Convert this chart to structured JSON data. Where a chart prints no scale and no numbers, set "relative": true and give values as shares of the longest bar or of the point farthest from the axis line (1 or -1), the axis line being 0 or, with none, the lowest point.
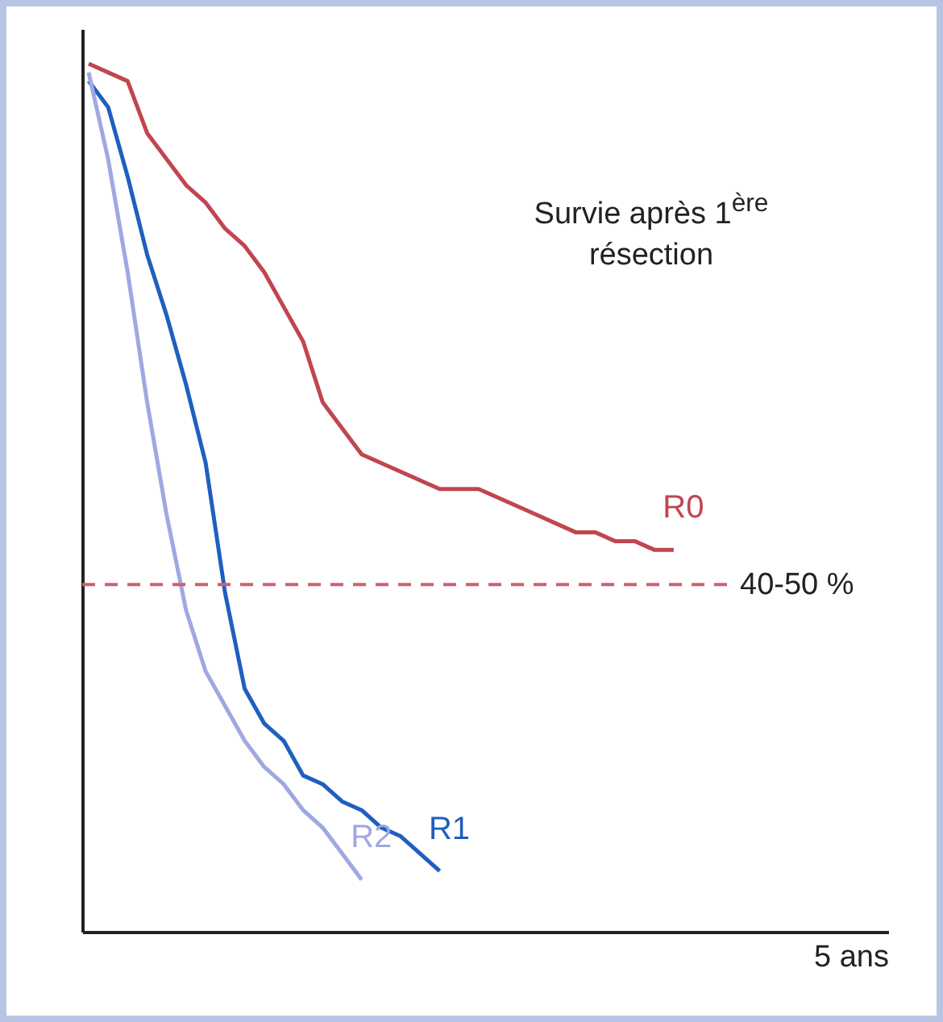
{
  "chart_data": {
    "type": "line",
    "relative": true,
    "xlabel": "5 ans",
    "categories": [
      null,
      null,
      null,
      null,
      null,
      null,
      null,
      null,
      null,
      null,
      null,
      null,
      null,
      null,
      null,
      null,
      null,
      null,
      null,
      null,
      null,
      null,
      null,
      null,
      null,
      null,
      null,
      null,
      null,
      null,
      null
    ],
    "series": [
      {
        "name": "R0",
        "color": "#c0464f",
        "values": [
          1.0,
          0.99,
          0.98,
          0.92,
          0.89,
          0.86,
          0.84,
          0.81,
          0.79,
          0.76,
          0.72,
          0.68,
          0.61,
          0.58,
          0.55,
          0.54,
          0.53,
          0.52,
          0.51,
          0.51,
          0.51,
          0.5,
          0.49,
          0.48,
          0.47,
          0.46,
          0.46,
          0.45,
          0.45,
          0.44,
          0.44
        ]
      },
      {
        "name": "R1",
        "color": "#1f5fbf",
        "values": [
          0.98,
          0.95,
          0.87,
          0.78,
          0.71,
          0.63,
          0.54,
          0.39,
          0.28,
          0.24,
          0.22,
          0.18,
          0.17,
          0.15,
          0.14,
          0.12,
          0.11,
          0.09,
          0.07,
          null,
          null,
          null,
          null,
          null,
          null,
          null,
          null,
          null,
          null,
          null,
          null
        ]
      },
      {
        "name": "R2",
        "color": "#9fa8e0",
        "values": [
          0.99,
          0.89,
          0.76,
          0.61,
          0.48,
          0.37,
          0.3,
          0.26,
          0.22,
          0.19,
          0.17,
          0.14,
          0.12,
          0.09,
          0.06,
          null,
          null,
          null,
          null,
          null,
          null,
          null,
          null,
          null,
          null,
          null,
          null,
          null,
          null,
          null,
          null
        ]
      }
    ],
    "ref_lines": [
      {
        "axis": "y",
        "value": 0.4,
        "label": "40-50 %",
        "color": "#d06070",
        "line_style": "dashed"
      }
    ],
    "annotations": [
      "Survie après 1$^{ère}$ résection"
    ]
  }
}
